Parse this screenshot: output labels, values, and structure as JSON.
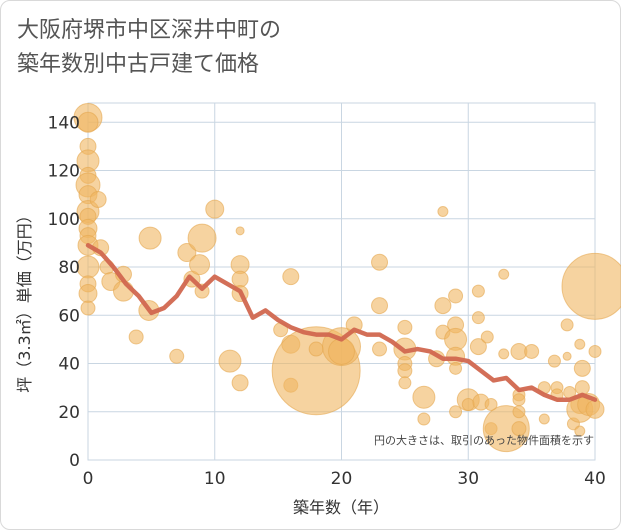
{
  "title_lines": [
    "大阪府堺市中区深井中町の",
    "築年数別中古戸建て価格"
  ],
  "chart_data": {
    "type": "scatter",
    "xlabel": "築年数（年）",
    "ylabel": "坪（3.3㎡）単価（万円）",
    "xlim": [
      0,
      40
    ],
    "ylim": [
      0,
      148
    ],
    "x_ticks": [
      0,
      10,
      20,
      30,
      40
    ],
    "y_ticks": [
      0,
      20,
      40,
      60,
      80,
      100,
      120,
      140
    ],
    "grid": true,
    "note": "円の大きさは、取引のあった物件面積を示す",
    "colors": {
      "bubble_fill": "#f0b661",
      "bubble_stroke": "#e5a64e",
      "trend_line": "#d1674f",
      "grid": "#c9d6e2",
      "axis_text": "#333333"
    },
    "scatter_points": [
      {
        "x": 0,
        "y": 142,
        "s": 14
      },
      {
        "x": 0,
        "y": 140,
        "s": 10
      },
      {
        "x": 0,
        "y": 130,
        "s": 8
      },
      {
        "x": 0,
        "y": 124,
        "s": 11
      },
      {
        "x": 0,
        "y": 118,
        "s": 8
      },
      {
        "x": 0,
        "y": 114,
        "s": 12
      },
      {
        "x": 0,
        "y": 110,
        "s": 9
      },
      {
        "x": 0,
        "y": 103,
        "s": 11
      },
      {
        "x": 0,
        "y": 101,
        "s": 8
      },
      {
        "x": 0,
        "y": 96,
        "s": 9
      },
      {
        "x": 0,
        "y": 93,
        "s": 8
      },
      {
        "x": 0,
        "y": 89,
        "s": 10
      },
      {
        "x": 0,
        "y": 80,
        "s": 11
      },
      {
        "x": 0,
        "y": 73,
        "s": 8
      },
      {
        "x": 0,
        "y": 69,
        "s": 9
      },
      {
        "x": 0,
        "y": 63,
        "s": 7
      },
      {
        "x": 0.8,
        "y": 108,
        "s": 8
      },
      {
        "x": 1,
        "y": 88,
        "s": 8
      },
      {
        "x": 1.5,
        "y": 80,
        "s": 7
      },
      {
        "x": 1.8,
        "y": 74,
        "s": 9
      },
      {
        "x": 2.8,
        "y": 77,
        "s": 8
      },
      {
        "x": 2.8,
        "y": 70,
        "s": 10
      },
      {
        "x": 3.8,
        "y": 51,
        "s": 7
      },
      {
        "x": 4.8,
        "y": 62,
        "s": 10
      },
      {
        "x": 4.9,
        "y": 92,
        "s": 11
      },
      {
        "x": 7,
        "y": 43,
        "s": 7
      },
      {
        "x": 7.8,
        "y": 86,
        "s": 9
      },
      {
        "x": 8.2,
        "y": 75,
        "s": 8
      },
      {
        "x": 8.8,
        "y": 81,
        "s": 10
      },
      {
        "x": 9,
        "y": 92,
        "s": 14
      },
      {
        "x": 9,
        "y": 70,
        "s": 7
      },
      {
        "x": 10,
        "y": 104,
        "s": 9
      },
      {
        "x": 11.2,
        "y": 41,
        "s": 11
      },
      {
        "x": 12,
        "y": 95,
        "s": 4
      },
      {
        "x": 12,
        "y": 81,
        "s": 9
      },
      {
        "x": 12,
        "y": 75,
        "s": 8
      },
      {
        "x": 12,
        "y": 69,
        "s": 8
      },
      {
        "x": 12,
        "y": 32,
        "s": 8
      },
      {
        "x": 15.2,
        "y": 54,
        "s": 7
      },
      {
        "x": 16,
        "y": 76,
        "s": 8
      },
      {
        "x": 16,
        "y": 48,
        "s": 9
      },
      {
        "x": 16,
        "y": 31,
        "s": 7
      },
      {
        "x": 18,
        "y": 37,
        "s": 44
      },
      {
        "x": 18,
        "y": 46,
        "s": 7
      },
      {
        "x": 20,
        "y": 47,
        "s": 19
      },
      {
        "x": 20,
        "y": 45,
        "s": 13
      },
      {
        "x": 21,
        "y": 56,
        "s": 8
      },
      {
        "x": 23,
        "y": 82,
        "s": 8
      },
      {
        "x": 23,
        "y": 64,
        "s": 8
      },
      {
        "x": 23,
        "y": 46,
        "s": 7
      },
      {
        "x": 25,
        "y": 55,
        "s": 7
      },
      {
        "x": 25,
        "y": 46,
        "s": 11
      },
      {
        "x": 25,
        "y": 40,
        "s": 7
      },
      {
        "x": 25,
        "y": 37,
        "s": 7
      },
      {
        "x": 25,
        "y": 32,
        "s": 6
      },
      {
        "x": 26.5,
        "y": 26,
        "s": 11
      },
      {
        "x": 26.5,
        "y": 17,
        "s": 6
      },
      {
        "x": 27.5,
        "y": 42,
        "s": 8
      },
      {
        "x": 28,
        "y": 103,
        "s": 5
      },
      {
        "x": 28,
        "y": 64,
        "s": 8
      },
      {
        "x": 28,
        "y": 53,
        "s": 7
      },
      {
        "x": 29,
        "y": 68,
        "s": 7
      },
      {
        "x": 29,
        "y": 56,
        "s": 8
      },
      {
        "x": 29,
        "y": 50,
        "s": 11
      },
      {
        "x": 29,
        "y": 43,
        "s": 9
      },
      {
        "x": 29,
        "y": 38,
        "s": 6
      },
      {
        "x": 29,
        "y": 20,
        "s": 6
      },
      {
        "x": 30,
        "y": 25,
        "s": 11
      },
      {
        "x": 30,
        "y": 23,
        "s": 6
      },
      {
        "x": 30.8,
        "y": 70,
        "s": 6
      },
      {
        "x": 30.8,
        "y": 59,
        "s": 6
      },
      {
        "x": 30.8,
        "y": 47,
        "s": 8
      },
      {
        "x": 31,
        "y": 24,
        "s": 8
      },
      {
        "x": 31.5,
        "y": 51,
        "s": 6
      },
      {
        "x": 31.8,
        "y": 23,
        "s": 6
      },
      {
        "x": 31.8,
        "y": 13,
        "s": 6
      },
      {
        "x": 32.8,
        "y": 77,
        "s": 5
      },
      {
        "x": 32.8,
        "y": 44,
        "s": 5
      },
      {
        "x": 33,
        "y": 13,
        "s": 23
      },
      {
        "x": 34,
        "y": 45,
        "s": 8
      },
      {
        "x": 34,
        "y": 27,
        "s": 6
      },
      {
        "x": 34,
        "y": 25,
        "s": 6
      },
      {
        "x": 34,
        "y": 20,
        "s": 6
      },
      {
        "x": 34,
        "y": 13,
        "s": 7
      },
      {
        "x": 35,
        "y": 45,
        "s": 7
      },
      {
        "x": 36,
        "y": 30,
        "s": 6
      },
      {
        "x": 36,
        "y": 17,
        "s": 5
      },
      {
        "x": 36.8,
        "y": 41,
        "s": 6
      },
      {
        "x": 37,
        "y": 30,
        "s": 6
      },
      {
        "x": 37,
        "y": 27,
        "s": 6
      },
      {
        "x": 37.8,
        "y": 56,
        "s": 6
      },
      {
        "x": 37.8,
        "y": 43,
        "s": 4
      },
      {
        "x": 38,
        "y": 28,
        "s": 6
      },
      {
        "x": 38.3,
        "y": 15,
        "s": 6
      },
      {
        "x": 38.8,
        "y": 48,
        "s": 5
      },
      {
        "x": 38.8,
        "y": 23,
        "s": 9
      },
      {
        "x": 38.8,
        "y": 21,
        "s": 13
      },
      {
        "x": 38.8,
        "y": 12,
        "s": 5
      },
      {
        "x": 39,
        "y": 38,
        "s": 8
      },
      {
        "x": 39,
        "y": 30,
        "s": 7
      },
      {
        "x": 39.5,
        "y": 23,
        "s": 11
      },
      {
        "x": 40,
        "y": 72,
        "s": 33
      },
      {
        "x": 40,
        "y": 45,
        "s": 6
      },
      {
        "x": 40,
        "y": 21,
        "s": 9
      }
    ],
    "trend_line": {
      "x": [
        0,
        1,
        2,
        3,
        4,
        5,
        6,
        7,
        8,
        9,
        10,
        11,
        12,
        13,
        14,
        15,
        16,
        17,
        18,
        19,
        20,
        21,
        22,
        23,
        24,
        25,
        26,
        27,
        28,
        29,
        30,
        31,
        32,
        33,
        34,
        35,
        36,
        37,
        38,
        39,
        40
      ],
      "y": [
        89,
        86,
        80,
        73,
        68,
        61,
        63,
        68,
        76,
        71,
        76,
        73,
        70,
        59,
        62,
        58,
        55,
        53,
        52,
        52,
        50,
        54,
        52,
        52,
        49,
        45,
        46,
        45,
        42,
        42,
        41,
        37,
        33,
        34,
        29,
        30,
        27,
        25,
        25,
        27,
        25
      ]
    }
  }
}
